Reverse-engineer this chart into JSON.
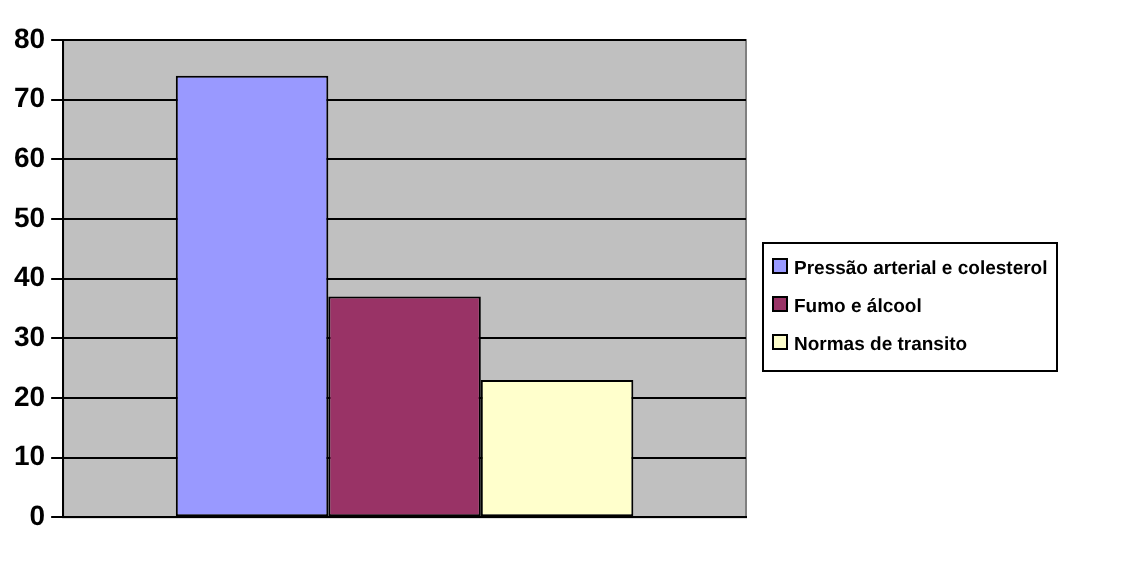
{
  "chart_data": {
    "type": "bar",
    "categories": [
      null
    ],
    "series": [
      {
        "name": "Pressão arterial e colesterol",
        "color": "#9999ff",
        "values": [
          74
        ]
      },
      {
        "name": "Fumo e álcool",
        "color": "#993366",
        "values": [
          37
        ]
      },
      {
        "name": "Normas de transito",
        "color": "#ffffcc",
        "values": [
          23
        ]
      }
    ],
    "ylim": [
      0,
      80
    ],
    "yticks": [
      0,
      10,
      20,
      30,
      40,
      50,
      60,
      70,
      80
    ],
    "grid": "y",
    "legend": "right"
  }
}
